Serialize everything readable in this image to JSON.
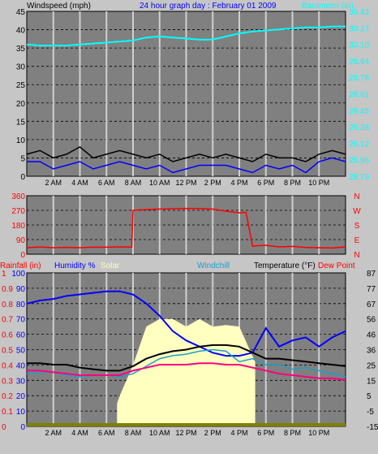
{
  "colors": {
    "background": "#c6c6c6",
    "plot_bg": "#808080",
    "grid": "#cfcfcf",
    "black": "#000000",
    "blue": "#0000ff",
    "cyan": "#00ffff",
    "red": "#ff0000",
    "magenta": "#ff0080",
    "solar": "#ffffc0",
    "teal": "#1e9ec9",
    "olive": "#808000"
  },
  "chart_data": [
    {
      "type": "line",
      "title": "24 hour graph day : February 01 2009",
      "ylabel": "Windspeed (mph)",
      "y2label": "Barometer (in)",
      "ylim": [
        0,
        45
      ],
      "y2lim": [
        28.79,
        30.43
      ],
      "yticks": [
        "45",
        "40",
        "35",
        "30",
        "25",
        "20",
        "15",
        "10",
        "5",
        "0"
      ],
      "y2ticks": [
        "30.43",
        "30.27",
        "30.10",
        "29.94",
        "29.78",
        "29.61",
        "29.45",
        "29.28",
        "29.12",
        "28.96",
        "28.79"
      ],
      "xticks": [
        "2 AM",
        "4 AM",
        "6 AM",
        "8 AM",
        "10 AM",
        "12 PM",
        "2 PM",
        "4 PM",
        "6 PM",
        "8 PM",
        "10 PM"
      ],
      "x_hours": [
        2,
        4,
        6,
        8,
        10,
        12,
        14,
        16,
        18,
        20,
        22
      ],
      "series": [
        {
          "name": "Barometer (in)",
          "axis": "right",
          "color": "#00ffff",
          "x": [
            0,
            1,
            2,
            3,
            4,
            5,
            6,
            7,
            8,
            9,
            10,
            11,
            12,
            13,
            14,
            15,
            16,
            17,
            18,
            19,
            20,
            21,
            22,
            23,
            24
          ],
          "values": [
            30.1,
            30.09,
            30.09,
            30.09,
            30.1,
            30.11,
            30.12,
            30.13,
            30.14,
            30.17,
            30.18,
            30.17,
            30.16,
            30.15,
            30.15,
            30.18,
            30.21,
            30.23,
            30.24,
            30.25,
            30.26,
            30.27,
            30.27,
            30.28,
            30.28
          ]
        },
        {
          "name": "",
          "axis": "left",
          "color": "#000000",
          "x": [
            0,
            1,
            2,
            3,
            4,
            5,
            6,
            7,
            8,
            9,
            10,
            11,
            12,
            13,
            14,
            15,
            16,
            17,
            18,
            19,
            20,
            21,
            22,
            23,
            24
          ],
          "values": [
            6,
            7,
            5,
            6,
            8,
            5,
            6,
            7,
            6,
            5,
            6,
            4,
            5,
            6,
            5,
            6,
            5,
            4,
            6,
            5,
            5,
            4,
            6,
            7,
            6
          ]
        },
        {
          "name": "",
          "axis": "left",
          "color": "#0000ff",
          "x": [
            0,
            1,
            2,
            3,
            4,
            5,
            6,
            7,
            8,
            9,
            10,
            11,
            12,
            13,
            14,
            15,
            16,
            17,
            18,
            19,
            20,
            21,
            22,
            23,
            24
          ],
          "values": [
            4,
            4,
            2,
            3,
            4,
            2,
            3,
            4,
            3,
            2,
            3,
            1,
            2,
            3,
            3,
            3,
            2,
            1,
            3,
            2,
            3,
            1,
            4,
            5,
            4
          ]
        }
      ]
    },
    {
      "type": "line",
      "yticks": [
        "360",
        "270",
        "180",
        "90",
        "0"
      ],
      "ylim": [
        0,
        360
      ],
      "y2ticks": [
        "N",
        "W",
        "S",
        "E",
        "N"
      ],
      "series": [
        {
          "name": "",
          "color": "#ff0000",
          "x": [
            0,
            1,
            2,
            3,
            4,
            5,
            6,
            7,
            7.9,
            8,
            9,
            10,
            11,
            12,
            13,
            14,
            15,
            16,
            16.5,
            17,
            18,
            19,
            20,
            21,
            22,
            23,
            24
          ],
          "values": [
            40,
            45,
            40,
            42,
            40,
            44,
            43,
            45,
            44,
            270,
            275,
            278,
            280,
            282,
            281,
            278,
            265,
            255,
            258,
            50,
            55,
            45,
            48,
            42,
            40,
            38,
            45
          ]
        }
      ]
    },
    {
      "type": "line",
      "legend": [
        "Rainfall (in)",
        "Humidity %",
        "Solar",
        "Windchill",
        "Temperature (°F)",
        "Dew Point"
      ],
      "y_rain_ticks": [
        "1",
        "0.9",
        "0.8",
        "0.7",
        "0.6",
        "0.5",
        "0.4",
        "0.3",
        "0.2",
        "0.1",
        "0"
      ],
      "y_hum_ticks": [
        "100",
        "90",
        "80",
        "70",
        "60",
        "50",
        "40",
        "30",
        "20",
        "10",
        "0"
      ],
      "y2ticks": [
        "87",
        "77",
        "67",
        "56",
        "46",
        "36",
        "25",
        "15",
        "5",
        "-5",
        "-15"
      ],
      "y2lim": [
        -15,
        87
      ],
      "series": [
        {
          "name": "Humidity %",
          "axis": "humidity",
          "color": "#0000ff",
          "x": [
            0,
            1,
            2,
            3,
            4,
            5,
            6,
            7,
            8,
            9,
            10,
            11,
            12,
            13,
            14,
            15,
            16,
            17,
            18,
            19,
            20,
            21,
            22,
            23,
            24
          ],
          "values": [
            80,
            82,
            83,
            85,
            86,
            87,
            88,
            88,
            86,
            80,
            72,
            62,
            56,
            52,
            48,
            46,
            46,
            48,
            64,
            52,
            56,
            58,
            52,
            58,
            62
          ]
        },
        {
          "name": "Temperature (°F)",
          "axis": "right",
          "color": "#000000",
          "x": [
            0,
            1,
            2,
            3,
            4,
            5,
            6,
            7,
            8,
            9,
            10,
            11,
            12,
            13,
            14,
            15,
            16,
            17,
            18,
            19,
            20,
            21,
            22,
            23,
            24
          ],
          "values": [
            27,
            27,
            26,
            26,
            24,
            23,
            22,
            22,
            25,
            30,
            33,
            35,
            36,
            38,
            39,
            39,
            38,
            34,
            30,
            30,
            29,
            28,
            27,
            26,
            25
          ]
        },
        {
          "name": "Windchill",
          "axis": "right",
          "color": "#1e9ec9",
          "x": [
            0,
            1,
            2,
            3,
            4,
            5,
            6,
            7,
            8,
            9,
            10,
            11,
            12,
            13,
            14,
            15,
            16,
            17,
            18,
            19,
            20,
            21,
            22,
            23,
            24
          ],
          "values": [
            20,
            21,
            21,
            19,
            18,
            19,
            19,
            18,
            20,
            25,
            30,
            32,
            33,
            35,
            36,
            35,
            28,
            30,
            26,
            26,
            23,
            24,
            22,
            20,
            18
          ]
        },
        {
          "name": "Dew Point",
          "axis": "right",
          "color": "#ff0080",
          "x": [
            0,
            1,
            2,
            3,
            4,
            5,
            6,
            7,
            8,
            9,
            10,
            11,
            12,
            13,
            14,
            15,
            16,
            17,
            18,
            19,
            20,
            21,
            22,
            23,
            24
          ],
          "values": [
            22,
            22,
            21,
            20,
            19,
            19,
            19,
            19,
            22,
            24,
            26,
            26,
            26,
            27,
            27,
            26,
            26,
            24,
            22,
            20,
            19,
            18,
            17,
            17,
            16
          ]
        },
        {
          "name": "Solar",
          "axis": "fill",
          "color": "#ffffc0",
          "x": [
            6.8,
            7,
            8,
            9,
            10,
            11,
            12,
            13,
            14,
            15,
            16,
            17.2
          ],
          "values": [
            15,
            20,
            40,
            65,
            70,
            70,
            65,
            70,
            65,
            66,
            65,
            42
          ]
        }
      ]
    }
  ]
}
